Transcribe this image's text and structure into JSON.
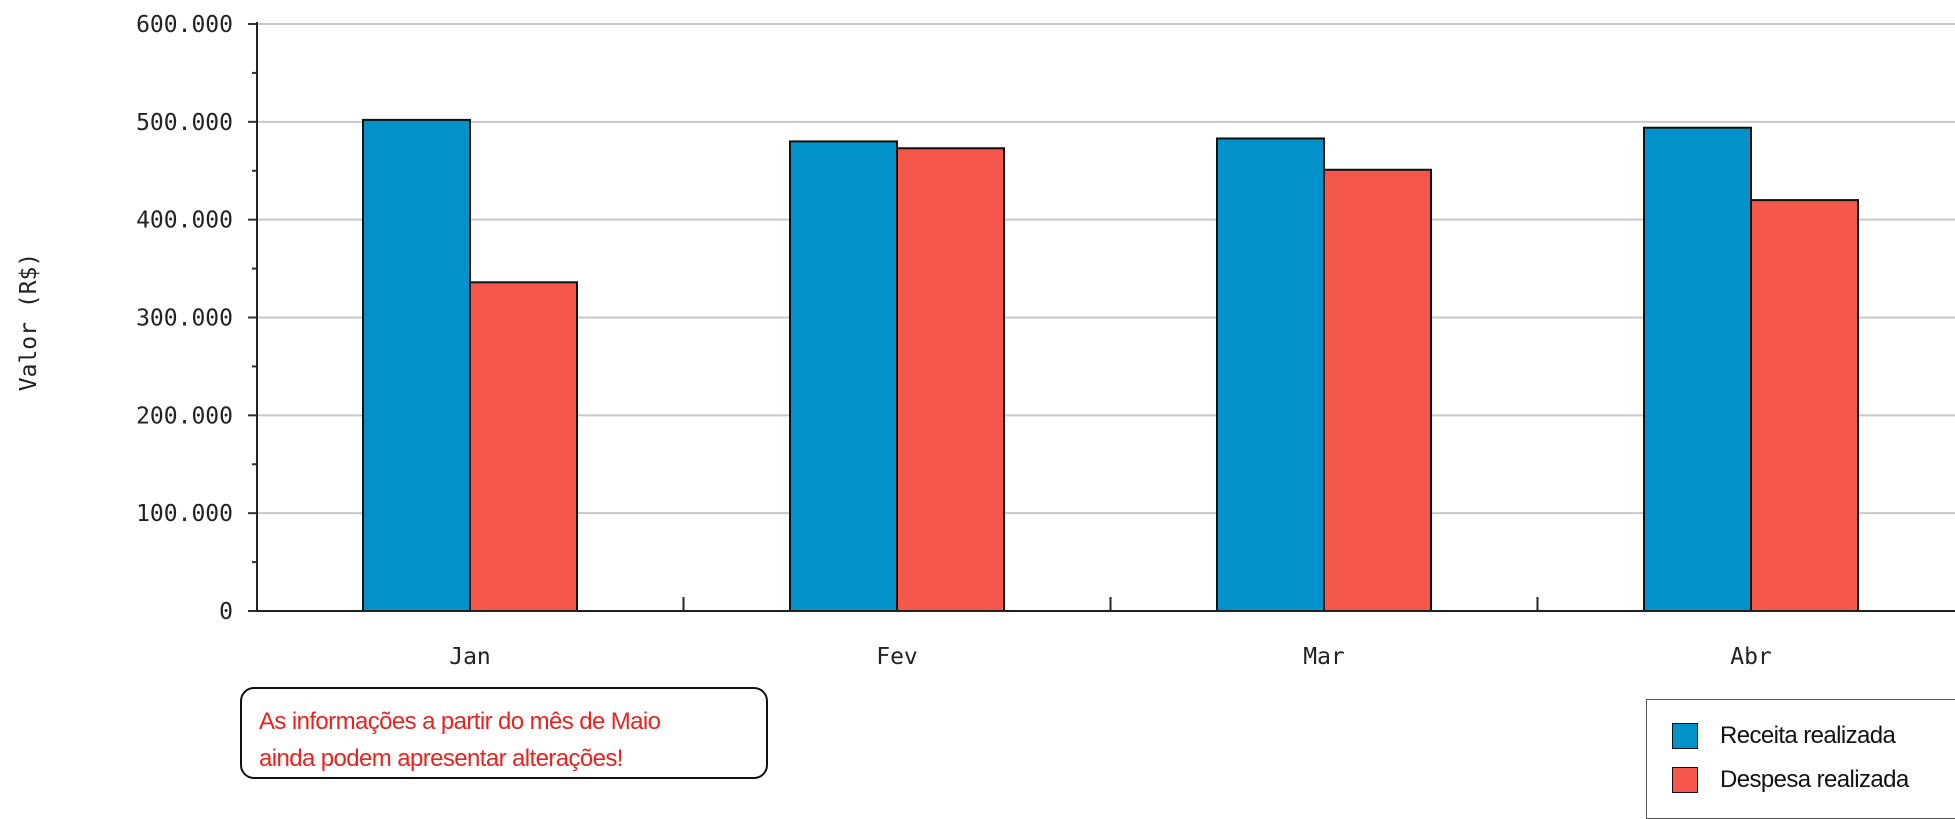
{
  "chart_data": {
    "type": "bar",
    "title": "",
    "xlabel": "",
    "ylabel": "Valor (R$)",
    "categories": [
      "Jan",
      "Fev",
      "Mar",
      "Abr"
    ],
    "ylim": [
      0,
      600000
    ],
    "yticks": [
      0,
      100000,
      200000,
      300000,
      400000,
      500000,
      600000
    ],
    "ytick_labels": [
      "0",
      "100.000",
      "200.000",
      "300.000",
      "400.000",
      "500.000",
      "600.000"
    ],
    "grid": true,
    "legend_position": "bottom-right",
    "series": [
      {
        "name": "Receita realizada",
        "color": "#0092c8",
        "values": [
          502000,
          480000,
          483000,
          494000
        ]
      },
      {
        "name": "Despesa realizada",
        "color": "#f5574a",
        "values": [
          336000,
          473000,
          451000,
          420000
        ]
      }
    ]
  },
  "note": {
    "line1": "As informações a partir do mês de Maio",
    "line2": "ainda podem apresentar alterações!"
  },
  "legend": {
    "item1": "Receita realizada",
    "item2": "Despesa realizada"
  }
}
